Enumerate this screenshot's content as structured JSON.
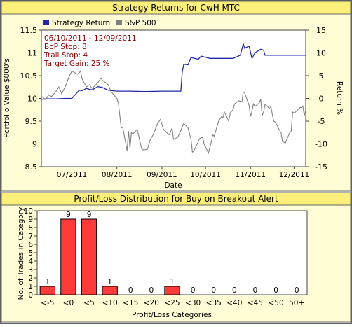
{
  "colors": {
    "title_bg": "#fdf07a",
    "panel_bg": "#fffdd6",
    "plot_bg": "#ffffff",
    "strategy_line": "#1f2aa8",
    "sp500_line": "#808080",
    "bar_fill": "#ff3a3a",
    "params_text": "#8b0000"
  },
  "chart_data": [
    {
      "type": "line",
      "title": "Strategy Returns for CwH MTC",
      "xlabel": "Date",
      "ylabel_left": "Portfolio Value $000's",
      "ylabel_right": "Return %",
      "ylim_left": [
        8.5,
        11.5
      ],
      "ylim_right": [
        -15,
        15
      ],
      "yticks_left": [
        "8.5",
        "9",
        "9.5",
        "10",
        "10.5",
        "11",
        "11.5"
      ],
      "yticks_right": [
        "-15",
        "-10",
        "-5",
        "0",
        "5",
        "10",
        "15"
      ],
      "x_range": [
        "2011-06-10",
        "2011-12-09"
      ],
      "xticks": [
        {
          "date": "2011-07-01",
          "label": "07/2011"
        },
        {
          "date": "2011-08-01",
          "label": "08/2011"
        },
        {
          "date": "2011-09-01",
          "label": "09/2011"
        },
        {
          "date": "2011-10-01",
          "label": "10/2011"
        },
        {
          "date": "2011-11-01",
          "label": "11/2011"
        },
        {
          "date": "2011-12-01",
          "label": "12/2011"
        }
      ],
      "grid": false,
      "legend_position": "top-left",
      "annotation": [
        "06/10/2011 - 12/09/2011",
        "BoP Stop: 8",
        "Trail Stop: 4",
        "Target Gain: 25 %"
      ],
      "series": [
        {
          "name": "Strategy Return",
          "axis": "left",
          "points": [
            [
              "2011-06-10",
              9.98
            ],
            [
              "2011-06-14",
              9.99
            ],
            [
              "2011-06-20",
              9.99
            ],
            [
              "2011-06-27",
              10.0
            ],
            [
              "2011-07-01",
              10.0
            ],
            [
              "2011-07-06",
              10.18
            ],
            [
              "2011-07-08",
              10.17
            ],
            [
              "2011-07-11",
              10.22
            ],
            [
              "2011-07-13",
              10.2
            ],
            [
              "2011-07-15",
              10.19
            ],
            [
              "2011-07-19",
              10.26
            ],
            [
              "2011-07-22",
              10.24
            ],
            [
              "2011-07-26",
              10.18
            ],
            [
              "2011-08-01",
              10.16
            ],
            [
              "2011-08-10",
              10.16
            ],
            [
              "2011-08-20",
              10.15
            ],
            [
              "2011-09-01",
              10.16
            ],
            [
              "2011-09-10",
              10.16
            ],
            [
              "2011-09-14",
              10.16
            ],
            [
              "2011-09-15",
              10.58
            ],
            [
              "2011-09-16",
              10.75
            ],
            [
              "2011-09-19",
              10.74
            ],
            [
              "2011-09-21",
              10.9
            ],
            [
              "2011-09-26",
              10.86
            ],
            [
              "2011-09-28",
              10.93
            ],
            [
              "2011-10-04",
              10.88
            ],
            [
              "2011-10-10",
              10.88
            ],
            [
              "2011-10-18",
              10.88
            ],
            [
              "2011-10-20",
              10.88
            ],
            [
              "2011-10-25",
              10.95
            ],
            [
              "2011-10-27",
              11.2
            ],
            [
              "2011-10-28",
              11.1
            ],
            [
              "2011-10-31",
              11.15
            ],
            [
              "2011-11-02",
              10.88
            ],
            [
              "2011-11-04",
              11.0
            ],
            [
              "2011-11-08",
              11.08
            ],
            [
              "2011-11-10",
              11.06
            ],
            [
              "2011-11-11",
              10.95
            ],
            [
              "2011-11-20",
              10.95
            ],
            [
              "2011-12-01",
              10.95
            ],
            [
              "2011-12-09",
              10.95
            ]
          ]
        },
        {
          "name": "S&P 500",
          "axis": "right",
          "points": [
            [
              "2011-06-10",
              0.5
            ],
            [
              "2011-06-13",
              -0.3
            ],
            [
              "2011-06-15",
              0.8
            ],
            [
              "2011-06-17",
              0.4
            ],
            [
              "2011-06-20",
              1.5
            ],
            [
              "2011-06-22",
              2.5
            ],
            [
              "2011-06-24",
              1.0
            ],
            [
              "2011-06-27",
              3.0
            ],
            [
              "2011-06-29",
              4.8
            ],
            [
              "2011-07-01",
              6.0
            ],
            [
              "2011-07-05",
              5.3
            ],
            [
              "2011-07-07",
              6.0
            ],
            [
              "2011-07-08",
              4.3
            ],
            [
              "2011-07-11",
              2.5
            ],
            [
              "2011-07-13",
              3.0
            ],
            [
              "2011-07-15",
              2.2
            ],
            [
              "2011-07-19",
              3.5
            ],
            [
              "2011-07-21",
              4.5
            ],
            [
              "2011-07-22",
              4.0
            ],
            [
              "2011-07-26",
              3.0
            ],
            [
              "2011-07-28",
              1.5
            ],
            [
              "2011-08-01",
              0.0
            ],
            [
              "2011-08-02",
              -1.0
            ],
            [
              "2011-08-04",
              -6.5
            ],
            [
              "2011-08-05",
              -6.3
            ],
            [
              "2011-08-08",
              -11.5
            ],
            [
              "2011-08-09",
              -7.2
            ],
            [
              "2011-08-10",
              -11.0
            ],
            [
              "2011-08-11",
              -7.5
            ],
            [
              "2011-08-12",
              -7.8
            ],
            [
              "2011-08-15",
              -6.8
            ],
            [
              "2011-08-18",
              -11.0
            ],
            [
              "2011-08-19",
              -11.3
            ],
            [
              "2011-08-22",
              -11.2
            ],
            [
              "2011-08-24",
              -9.0
            ],
            [
              "2011-08-26",
              -8.0
            ],
            [
              "2011-08-29",
              -5.5
            ],
            [
              "2011-08-31",
              -4.6
            ],
            [
              "2011-09-02",
              -6.8
            ],
            [
              "2011-09-06",
              -8.0
            ],
            [
              "2011-09-08",
              -6.5
            ],
            [
              "2011-09-09",
              -9.0
            ],
            [
              "2011-09-12",
              -8.5
            ],
            [
              "2011-09-14",
              -7.0
            ],
            [
              "2011-09-16",
              -5.5
            ],
            [
              "2011-09-19",
              -6.5
            ],
            [
              "2011-09-21",
              -9.0
            ],
            [
              "2011-09-22",
              -11.8
            ],
            [
              "2011-09-23",
              -11.5
            ],
            [
              "2011-09-26",
              -9.5
            ],
            [
              "2011-09-27",
              -8.8
            ],
            [
              "2011-09-29",
              -8.5
            ],
            [
              "2011-09-30",
              -10.0
            ],
            [
              "2011-10-03",
              -12.0
            ],
            [
              "2011-10-04",
              -10.8
            ],
            [
              "2011-10-05",
              -9.5
            ],
            [
              "2011-10-06",
              -8.0
            ],
            [
              "2011-10-07",
              -8.3
            ],
            [
              "2011-10-10",
              -5.0
            ],
            [
              "2011-10-12",
              -4.0
            ],
            [
              "2011-10-13",
              -4.3
            ],
            [
              "2011-10-14",
              -3.0
            ],
            [
              "2011-10-17",
              -5.0
            ],
            [
              "2011-10-18",
              -3.2
            ],
            [
              "2011-10-20",
              -2.5
            ],
            [
              "2011-10-21",
              -1.2
            ],
            [
              "2011-10-24",
              -0.5
            ],
            [
              "2011-10-26",
              -0.8
            ],
            [
              "2011-10-27",
              1.5
            ],
            [
              "2011-10-28",
              1.2
            ],
            [
              "2011-10-31",
              -1.5
            ],
            [
              "2011-11-01",
              -4.0
            ],
            [
              "2011-11-02",
              -2.8
            ],
            [
              "2011-11-03",
              -1.2
            ],
            [
              "2011-11-04",
              -1.8
            ],
            [
              "2011-11-07",
              -1.0
            ],
            [
              "2011-11-08",
              -0.2
            ],
            [
              "2011-11-09",
              -3.8
            ],
            [
              "2011-11-10",
              -3.0
            ],
            [
              "2011-11-11",
              -1.3
            ],
            [
              "2011-11-14",
              -2.2
            ],
            [
              "2011-11-15",
              -1.8
            ],
            [
              "2011-11-16",
              -3.5
            ],
            [
              "2011-11-17",
              -5.0
            ],
            [
              "2011-11-18",
              -5.2
            ],
            [
              "2011-11-21",
              -7.0
            ],
            [
              "2011-11-22",
              -7.5
            ],
            [
              "2011-11-23",
              -9.5
            ],
            [
              "2011-11-25",
              -9.8
            ],
            [
              "2011-11-28",
              -7.5
            ],
            [
              "2011-11-29",
              -7.2
            ],
            [
              "2011-11-30",
              -3.0
            ],
            [
              "2011-12-01",
              -3.2
            ],
            [
              "2011-12-02",
              -3.0
            ],
            [
              "2011-12-05",
              -2.0
            ],
            [
              "2011-12-06",
              -2.0
            ],
            [
              "2011-12-07",
              -1.7
            ],
            [
              "2011-12-08",
              -3.8
            ],
            [
              "2011-12-09",
              -2.5
            ]
          ]
        }
      ]
    },
    {
      "type": "bar",
      "title": "Profit/Loss Distribution for Buy on Breakout Alert",
      "xlabel": "Profit/Loss Categories",
      "ylabel": "No. of Trades in Category",
      "ylim": [
        0,
        10
      ],
      "yticks": [
        "0",
        "1",
        "2",
        "3",
        "4",
        "5",
        "6",
        "7",
        "8",
        "9",
        "10"
      ],
      "grid": false,
      "categories": [
        "<-5",
        "<0",
        "<5",
        "<10",
        "<15",
        "<20",
        "<25",
        "<30",
        "<35",
        "<40",
        "<45",
        "<50",
        "50+"
      ],
      "values": [
        1,
        9,
        9,
        1,
        0,
        0,
        1,
        0,
        0,
        0,
        0,
        0,
        0
      ],
      "value_labels": [
        "1",
        "9",
        "9",
        "1",
        "0",
        "0",
        "1",
        "0",
        "0",
        "0",
        "0",
        "0",
        "0"
      ]
    }
  ]
}
